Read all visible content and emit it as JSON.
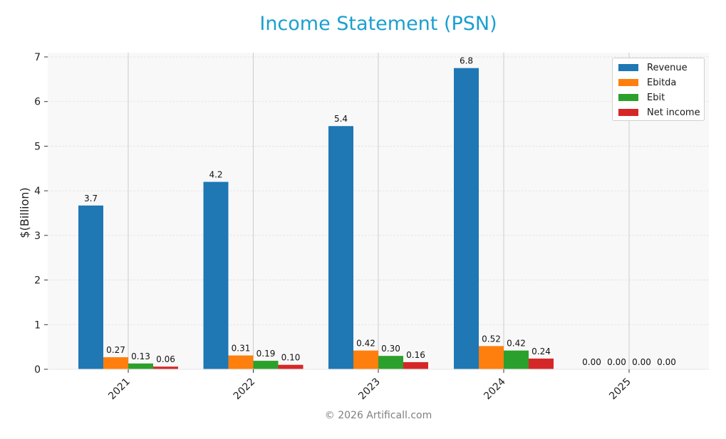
{
  "title": "Income Statement (PSN)",
  "footer": "© 2026 Artificall.com",
  "colors": {
    "title": "#1a9fd0",
    "plot_bg": "#f8f8f8",
    "grid": "#e0e0e0",
    "Revenue": "#1f77b4",
    "Ebitda": "#ff7f0e",
    "Ebit": "#2ca02c",
    "Net income": "#d62728"
  },
  "legend": [
    {
      "label": "Revenue",
      "color": "#1f77b4"
    },
    {
      "label": "Ebitda",
      "color": "#ff7f0e"
    },
    {
      "label": "Ebit",
      "color": "#2ca02c"
    },
    {
      "label": "Net income",
      "color": "#d62728"
    }
  ],
  "chart_data": {
    "type": "bar",
    "title": "Income Statement (PSN)",
    "xlabel": "",
    "ylabel": "$(Billion)",
    "ylim": [
      0,
      7
    ],
    "yticks": [
      0,
      1,
      2,
      3,
      4,
      5,
      6,
      7
    ],
    "grid": true,
    "legend_position": "upper right",
    "categories": [
      "2021",
      "2022",
      "2023",
      "2024",
      "2025"
    ],
    "series": [
      {
        "name": "Revenue",
        "values": [
          3.67,
          4.2,
          5.45,
          6.75,
          0.0
        ],
        "labels": [
          "3.7",
          "4.2",
          "5.4",
          "6.8",
          "0.00"
        ]
      },
      {
        "name": "Ebitda",
        "values": [
          0.27,
          0.31,
          0.42,
          0.52,
          0.0
        ],
        "labels": [
          "0.27",
          "0.31",
          "0.42",
          "0.52",
          "0.00"
        ]
      },
      {
        "name": "Ebit",
        "values": [
          0.13,
          0.19,
          0.3,
          0.42,
          0.0
        ],
        "labels": [
          "0.13",
          "0.19",
          "0.30",
          "0.42",
          "0.00"
        ]
      },
      {
        "name": "Net income",
        "values": [
          0.06,
          0.1,
          0.16,
          0.24,
          0.0
        ],
        "labels": [
          "0.06",
          "0.10",
          "0.16",
          "0.24",
          "0.00"
        ]
      }
    ]
  }
}
